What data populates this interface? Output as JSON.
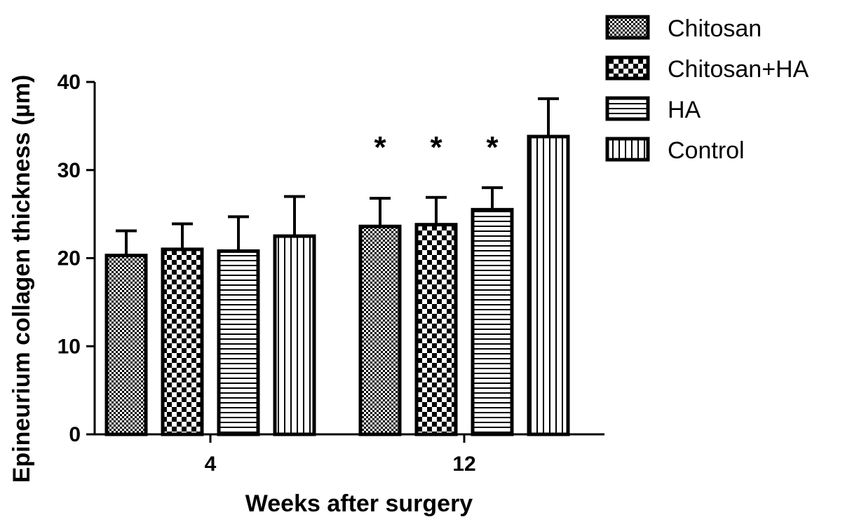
{
  "chart_data": {
    "type": "bar",
    "xlabel": "Weeks after surgery",
    "ylabel": "Epineurium collagen thickness (µm)",
    "categories": [
      "4",
      "12"
    ],
    "ylim": [
      0,
      40
    ],
    "yticks": [
      0,
      10,
      20,
      30,
      40
    ],
    "grid": false,
    "legend_position": "top-right",
    "series": [
      {
        "name": "Chitosan",
        "pattern": "fine-checker",
        "values": [
          20.3,
          23.6
        ],
        "errors": [
          2.8,
          3.2
        ]
      },
      {
        "name": "Chitosan+HA",
        "pattern": "coarse-checker",
        "values": [
          21.0,
          23.8
        ],
        "errors": [
          2.9,
          3.1
        ]
      },
      {
        "name": "HA",
        "pattern": "horizontal-lines",
        "values": [
          20.8,
          25.5
        ],
        "errors": [
          3.9,
          2.5
        ]
      },
      {
        "name": "Control",
        "pattern": "vertical-lines",
        "values": [
          22.5,
          33.8
        ],
        "errors": [
          4.5,
          4.3
        ]
      }
    ],
    "annotations": [
      {
        "text": "*",
        "category": "12",
        "series": "Chitosan"
      },
      {
        "text": "*",
        "category": "12",
        "series": "Chitosan+HA"
      },
      {
        "text": "*",
        "category": "12",
        "series": "HA"
      }
    ],
    "colors": {
      "ink": "#000000",
      "background": "#ffffff"
    }
  }
}
